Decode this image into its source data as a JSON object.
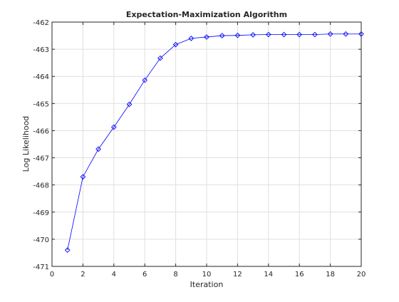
{
  "chart_data": {
    "type": "line",
    "title": "Expectation-Maximization Algorithm",
    "xlabel": "Iteration",
    "ylabel": "Log Likelihood",
    "xlim": [
      0,
      20
    ],
    "ylim": [
      -471,
      -462
    ],
    "xticks": [
      0,
      2,
      4,
      6,
      8,
      10,
      12,
      14,
      16,
      18,
      20
    ],
    "yticks": [
      -471,
      -470,
      -469,
      -468,
      -467,
      -466,
      -465,
      -464,
      -463,
      -462
    ],
    "grid": true,
    "marker": "diamond",
    "line_color": "#0000ff",
    "series": [
      {
        "x": [
          1,
          2,
          3,
          4,
          5,
          6,
          7,
          8,
          9,
          10,
          11,
          12,
          13,
          14,
          15,
          16,
          17,
          18,
          19,
          20
        ],
        "values": [
          -470.4,
          -467.7,
          -466.68,
          -465.87,
          -465.03,
          -464.14,
          -463.33,
          -462.83,
          -462.6,
          -462.55,
          -462.5,
          -462.49,
          -462.47,
          -462.46,
          -462.46,
          -462.46,
          -462.46,
          -462.44,
          -462.44,
          -462.44
        ]
      }
    ]
  }
}
